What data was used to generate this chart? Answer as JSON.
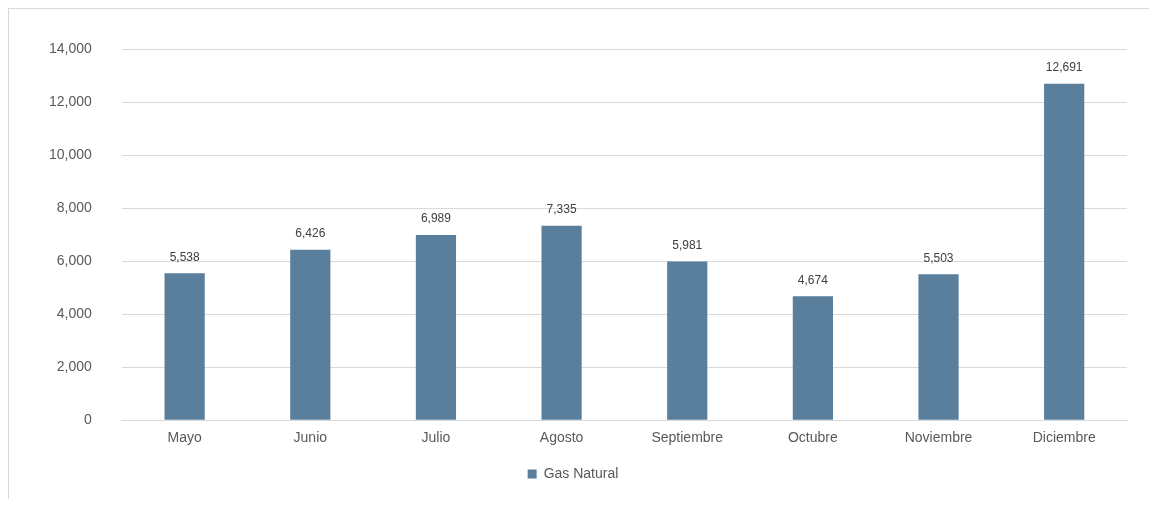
{
  "chart_data": {
    "type": "bar",
    "categories": [
      "Mayo",
      "Junio",
      "Julio",
      "Agosto",
      "Septiembre",
      "Octubre",
      "Noviembre",
      "Diciembre"
    ],
    "series": [
      {
        "name": "Gas Natural",
        "color": "#5a7f9c",
        "values": [
          5538,
          6426,
          6989,
          7335,
          5981,
          4674,
          5503,
          12691
        ],
        "value_labels": [
          "5,538",
          "6,426",
          "6,989",
          "7,335",
          "5,981",
          "4,674",
          "5,503",
          "12,691"
        ]
      }
    ],
    "ylim": [
      0,
      14000
    ],
    "yticks": [
      0,
      {
        "value": 2000,
        "label": "2,000"
      },
      {
        "value": 4000,
        "label": "4,000"
      },
      {
        "value": 6000,
        "label": "6,000"
      },
      {
        "value": 8000,
        "label": "8,000"
      },
      {
        "value": 10000,
        "label": "10,000"
      },
      {
        "value": 12000,
        "label": "12,000"
      },
      {
        "value": 14000,
        "label": "14,000"
      }
    ],
    "grid": "y",
    "legend": "bottom"
  }
}
